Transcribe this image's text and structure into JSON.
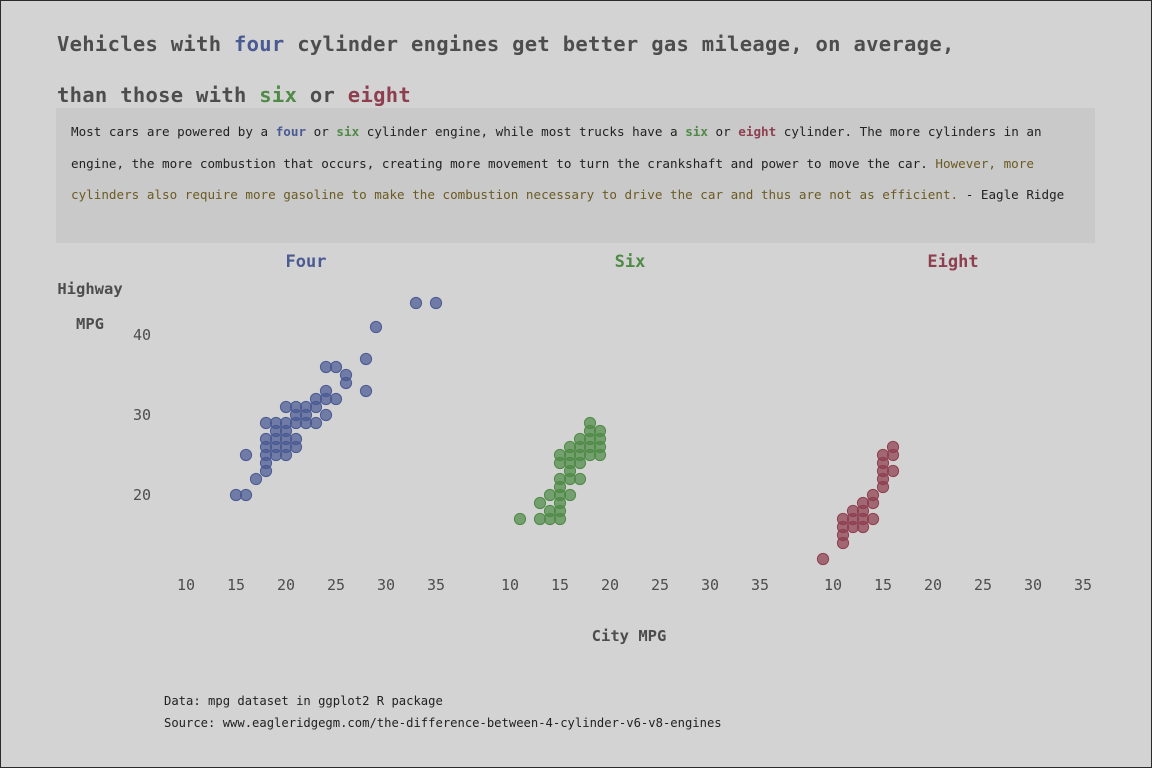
{
  "title": {
    "line1_pre": "Vehicles with ",
    "line1_four": "four",
    "line1_post": " cylinder engines get better gas mileage, on average,",
    "line2_pre": "than those with ",
    "line2_six": "six",
    "line2_or": " or ",
    "line2_eight": "eight"
  },
  "subtitle": {
    "p1": "Most cars are powered by a ",
    "four": "four",
    "p2": " or ",
    "six": "six",
    "p3": " cylinder engine, while most trucks have a ",
    "six2": "six",
    "p4": " or ",
    "eight": "eight",
    "p5": " cylinder. The more cylinders in an engine, the more combustion that occurs, creating more movement to turn the crankshaft and power to move the car. ",
    "highlight": "However, more cylinders also require more gasoline to make the combustion necessary to drive the car and thus are not as efficient.",
    "p6": " - Eagle Ridge"
  },
  "caption": {
    "data": "Data: mpg dataset in ggplot2 R package",
    "source": "Source: www.eagleridgegm.com/the-difference-between-4-cylinder-v6-v8-engines"
  },
  "colors": {
    "background": "#d3d3d3",
    "subtitle_box": "#c9c9c9",
    "four": "#4a5a93",
    "six": "#4f8a46",
    "eight": "#8e3f4f",
    "highlight_text": "#6b5a23"
  },
  "chart_data": {
    "type": "scatter",
    "xlabel": "City MPG",
    "ylabel_line1": "Highway",
    "ylabel_line2": "MPG",
    "xlim": [
      8,
      36
    ],
    "ylim": [
      10,
      46
    ],
    "xticks": [
      10,
      15,
      20,
      25,
      30,
      35
    ],
    "yticks": [
      20,
      30,
      40
    ],
    "grid": false,
    "facets": [
      {
        "name": "Four",
        "color": "#4a5a93",
        "points": [
          [
            15,
            20
          ],
          [
            16,
            20
          ],
          [
            16,
            25
          ],
          [
            17,
            22
          ],
          [
            18,
            23
          ],
          [
            18,
            24
          ],
          [
            18,
            25
          ],
          [
            18,
            26
          ],
          [
            18,
            27
          ],
          [
            18,
            29
          ],
          [
            19,
            25
          ],
          [
            19,
            26
          ],
          [
            19,
            27
          ],
          [
            19,
            28
          ],
          [
            19,
            29
          ],
          [
            20,
            25
          ],
          [
            20,
            26
          ],
          [
            20,
            27
          ],
          [
            20,
            28
          ],
          [
            20,
            29
          ],
          [
            20,
            31
          ],
          [
            21,
            26
          ],
          [
            21,
            27
          ],
          [
            21,
            29
          ],
          [
            21,
            30
          ],
          [
            21,
            31
          ],
          [
            22,
            29
          ],
          [
            22,
            30
          ],
          [
            22,
            31
          ],
          [
            23,
            29
          ],
          [
            23,
            31
          ],
          [
            23,
            32
          ],
          [
            24,
            30
          ],
          [
            24,
            32
          ],
          [
            24,
            33
          ],
          [
            24,
            36
          ],
          [
            25,
            32
          ],
          [
            25,
            36
          ],
          [
            26,
            34
          ],
          [
            26,
            35
          ],
          [
            28,
            33
          ],
          [
            28,
            37
          ],
          [
            29,
            41
          ],
          [
            33,
            44
          ],
          [
            35,
            44
          ]
        ]
      },
      {
        "name": "Six",
        "color": "#4f8a46",
        "points": [
          [
            11,
            17
          ],
          [
            13,
            17
          ],
          [
            13,
            19
          ],
          [
            14,
            17
          ],
          [
            14,
            18
          ],
          [
            14,
            20
          ],
          [
            15,
            17
          ],
          [
            15,
            18
          ],
          [
            15,
            19
          ],
          [
            15,
            20
          ],
          [
            15,
            21
          ],
          [
            15,
            22
          ],
          [
            15,
            24
          ],
          [
            15,
            25
          ],
          [
            16,
            20
          ],
          [
            16,
            22
          ],
          [
            16,
            23
          ],
          [
            16,
            24
          ],
          [
            16,
            25
          ],
          [
            16,
            26
          ],
          [
            17,
            22
          ],
          [
            17,
            24
          ],
          [
            17,
            25
          ],
          [
            17,
            26
          ],
          [
            17,
            27
          ],
          [
            18,
            25
          ],
          [
            18,
            26
          ],
          [
            18,
            27
          ],
          [
            18,
            28
          ],
          [
            18,
            29
          ],
          [
            19,
            25
          ],
          [
            19,
            26
          ],
          [
            19,
            27
          ],
          [
            19,
            28
          ]
        ]
      },
      {
        "name": "Eight",
        "color": "#8e3f4f",
        "points": [
          [
            9,
            12
          ],
          [
            11,
            14
          ],
          [
            11,
            15
          ],
          [
            11,
            16
          ],
          [
            11,
            17
          ],
          [
            12,
            16
          ],
          [
            12,
            17
          ],
          [
            12,
            18
          ],
          [
            13,
            16
          ],
          [
            13,
            17
          ],
          [
            13,
            18
          ],
          [
            13,
            19
          ],
          [
            14,
            17
          ],
          [
            14,
            19
          ],
          [
            14,
            20
          ],
          [
            15,
            21
          ],
          [
            15,
            22
          ],
          [
            15,
            23
          ],
          [
            15,
            24
          ],
          [
            15,
            25
          ],
          [
            16,
            23
          ],
          [
            16,
            25
          ],
          [
            16,
            26
          ]
        ]
      }
    ]
  }
}
